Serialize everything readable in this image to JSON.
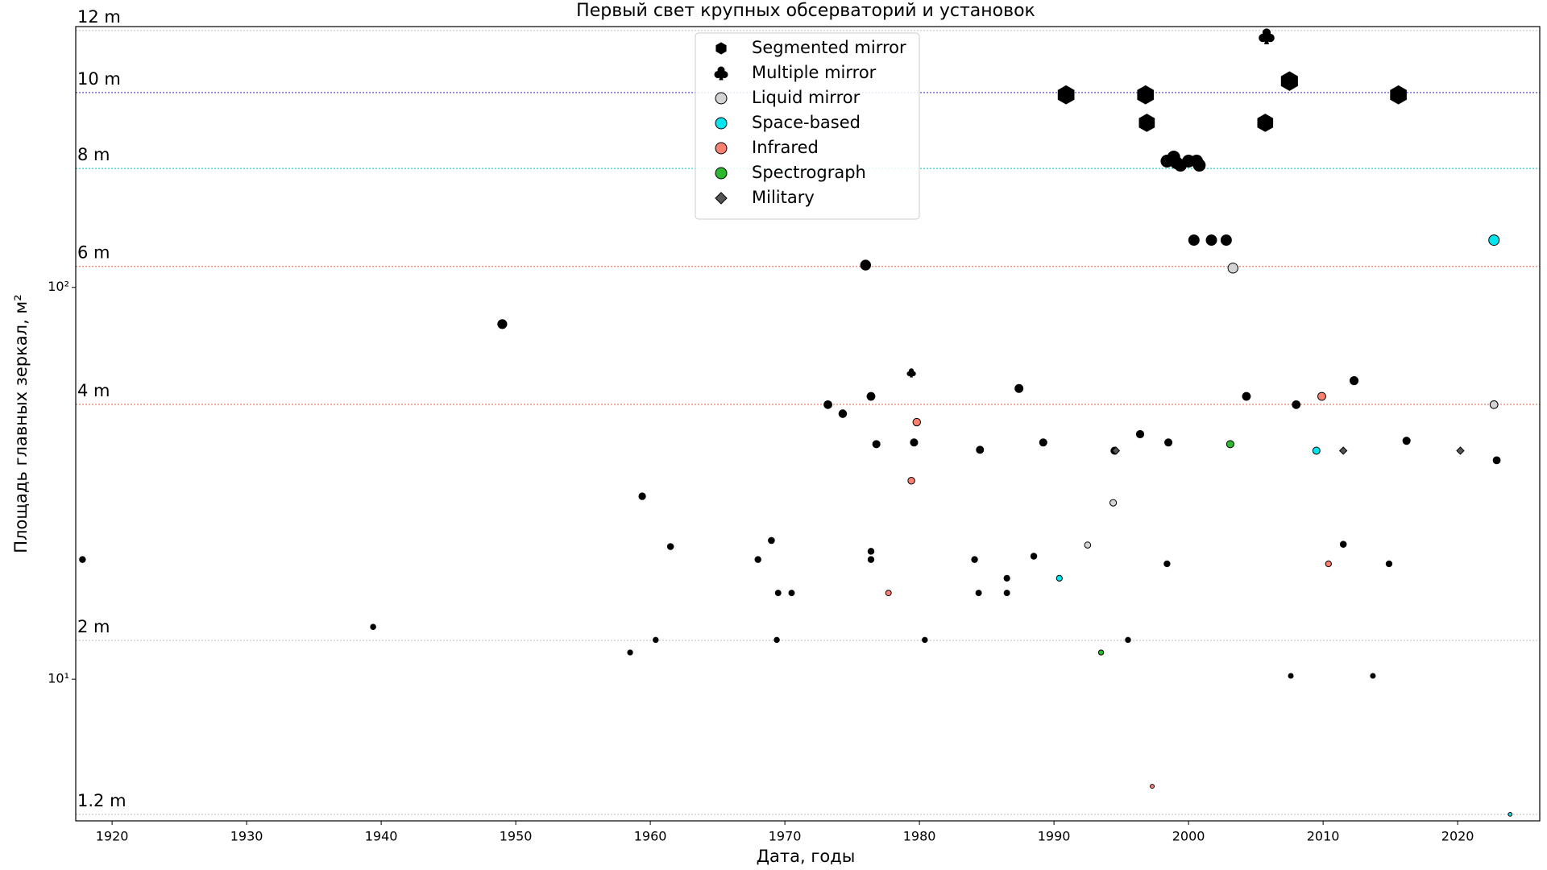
{
  "chart_data": {
    "type": "scatter",
    "title": "Первый свет крупных обсерваторий и установок",
    "x_label": "Дата, годы",
    "y_label": "Площадь главных зеркал, м²",
    "xlim": [
      1917.3,
      2026.1
    ],
    "xticks": [
      1920,
      1930,
      1940,
      1950,
      1960,
      1970,
      1980,
      1990,
      2000,
      2010,
      2020
    ],
    "ylim": [
      4.35,
      463
    ],
    "y_scale": "log",
    "yticks": [
      {
        "value": 10,
        "label": "10¹"
      },
      {
        "value": 100,
        "label": "10²"
      }
    ],
    "legend_position": "top-center",
    "reference_lines": [
      {
        "value": 452.4,
        "label": "12 m",
        "color": "#c8c8c8"
      },
      {
        "value": 314.2,
        "label": "10 m",
        "color": "#5a4fcf"
      },
      {
        "value": 201.1,
        "label": "8 m",
        "color": "#40d0d0"
      },
      {
        "value": 113.1,
        "label": "6 m",
        "color": "#f08070"
      },
      {
        "value": 50.27,
        "label": "4 m",
        "color": "#f08070"
      },
      {
        "value": 12.57,
        "label": "2 m",
        "color": "#c8c8c8"
      },
      {
        "value": 4.52,
        "label": "1.2 m",
        "color": "#c8c8c8"
      }
    ],
    "series": [
      {
        "color": "#000000",
        "marker": "circle",
        "x": [
          1917.8,
          1939.4,
          1949.0,
          1958.5,
          1959.4,
          1960.4,
          1961.5,
          1968.0,
          1969.0,
          1969.5,
          1969.4,
          1970.5,
          1973.2,
          1974.3,
          1976.0,
          1976.4,
          1976.4,
          1976.4,
          1976.8,
          1979.6,
          1980.4,
          1984.1,
          1984.4,
          1984.5,
          1986.5,
          1986.5,
          1987.4,
          1988.5,
          1989.2,
          1994.5,
          1995.5,
          1996.4,
          1998.4,
          1998.5,
          2000.4,
          2001.7,
          2002.8,
          2004.3,
          2007.6,
          2008.0,
          2012.3,
          2011.5,
          2013.7,
          2014.9,
          2016.2,
          2022.9,
          1998.4,
          1998.9,
          1999.1,
          1999.4,
          2000.0,
          2000.6,
          2000.8
        ],
        "values": [
          20.2,
          13.6,
          80.6,
          11.7,
          29.3,
          12.6,
          21.8,
          20.2,
          22.6,
          16.6,
          12.6,
          16.6,
          50.2,
          47.6,
          114,
          52.7,
          21.2,
          20.2,
          39.8,
          40.2,
          12.6,
          20.2,
          16.6,
          38.5,
          18.1,
          16.6,
          55.2,
          20.6,
          40.2,
          38.3,
          12.6,
          42.2,
          19.7,
          40.2,
          132,
          132,
          132,
          52.7,
          10.2,
          50.2,
          57.8,
          22.1,
          10.2,
          19.7,
          40.6,
          36.2,
          210,
          215,
          208,
          205,
          210,
          210,
          205
        ]
      },
      {
        "name": "Segmented mirror",
        "color": "#000000",
        "marker": "hexagon",
        "x": [
          1990.9,
          1996.8,
          1996.9,
          2005.7,
          2007.5,
          2015.6
        ],
        "values": [
          310,
          310,
          263,
          263,
          336,
          310
        ]
      },
      {
        "name": "Multiple mirror",
        "color": "#000000",
        "marker": "club",
        "x": [
          2005.8,
          1979.4
        ],
        "values": [
          437,
          60.5
        ]
      },
      {
        "name": "Liquid mirror",
        "color": "#d3d3d3",
        "marker": "circle",
        "x": [
          2003.3,
          1992.5,
          1994.4,
          2022.7
        ],
        "values": [
          112,
          22,
          28.2,
          50.2
        ]
      },
      {
        "name": "Space-based",
        "color": "#00e5ee",
        "marker": "circle",
        "x": [
          1990.4,
          2009.5,
          2022.7,
          2023.9
        ],
        "values": [
          18.1,
          38.3,
          132,
          4.52
        ]
      },
      {
        "name": "Infrared",
        "color": "#fa8072",
        "marker": "circle",
        "x": [
          1979.8,
          1979.4,
          1977.7,
          1997.3,
          2009.9,
          2010.4
        ],
        "values": [
          45.3,
          32.1,
          16.6,
          5.33,
          52.7,
          19.7
        ]
      },
      {
        "name": "Spectrograph",
        "color": "#2eb82e",
        "marker": "circle",
        "x": [
          2003.1,
          1993.5
        ],
        "values": [
          39.8,
          11.7
        ]
      },
      {
        "name": "Military",
        "color": "#555555",
        "marker": "diamond",
        "x": [
          1994.6,
          2011.5,
          2020.2
        ],
        "values": [
          38.3,
          38.3,
          38.3
        ]
      }
    ]
  }
}
